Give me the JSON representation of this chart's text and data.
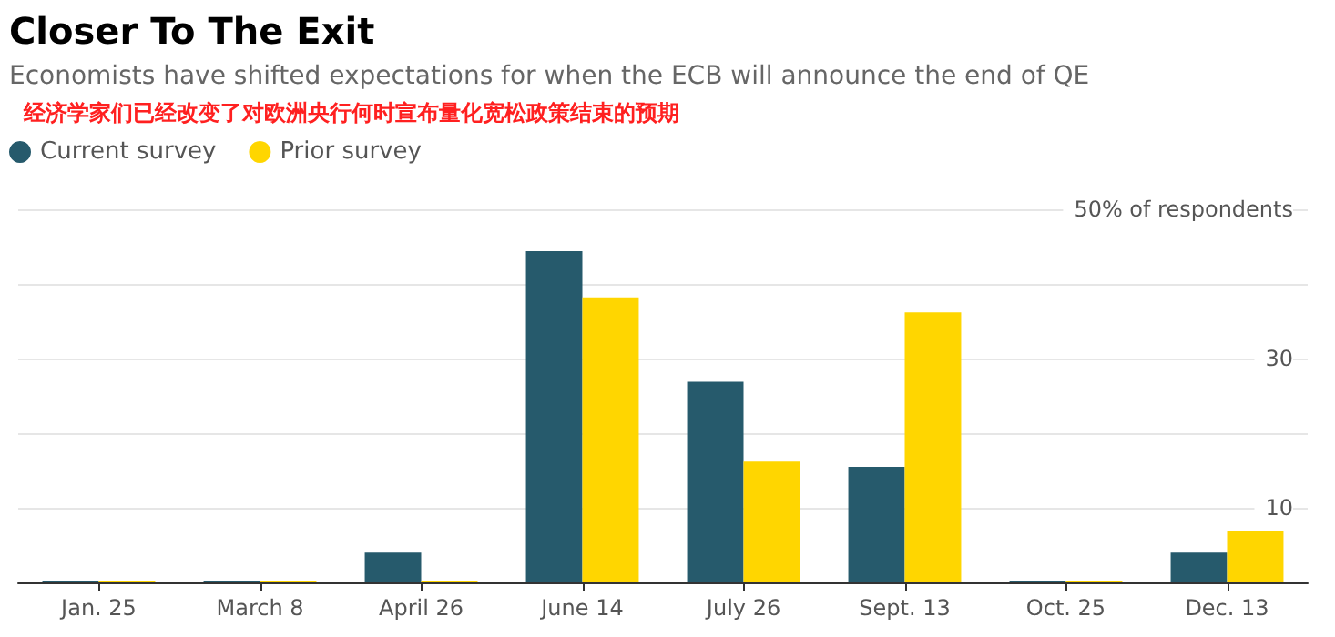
{
  "chart_data": {
    "type": "bar",
    "title": "Closer To The Exit",
    "subtitle": "Economists have shifted expectations for when the ECB will announce the end of QE",
    "annotations": [
      "经济学家们已经改变了对欧洲央行何时宣布量化宽松政策结束的预期"
    ],
    "categories": [
      "Jan. 25",
      "March 8",
      "April 26",
      "June 14",
      "July 26",
      "Sept. 13",
      "Oct. 25",
      "Dec. 13"
    ],
    "series": [
      {
        "name": "Current survey",
        "color": "#265a6c",
        "values": [
          0,
          0,
          4,
          44.4,
          26.9,
          15.5,
          0,
          4
        ]
      },
      {
        "name": "Prior survey",
        "color": "#ffd600",
        "values": [
          0,
          0,
          0,
          38.2,
          16.2,
          36.2,
          0,
          6.9
        ]
      }
    ],
    "ylim": [
      0,
      50
    ],
    "yticks": [
      {
        "value": 0,
        "label": null
      },
      10,
      {
        "value": 20,
        "label": null
      },
      30,
      {
        "value": 40,
        "label": null
      },
      {
        "value": 50,
        "label": "50% of respondents"
      }
    ],
    "grid": "y",
    "legend": "top left"
  }
}
